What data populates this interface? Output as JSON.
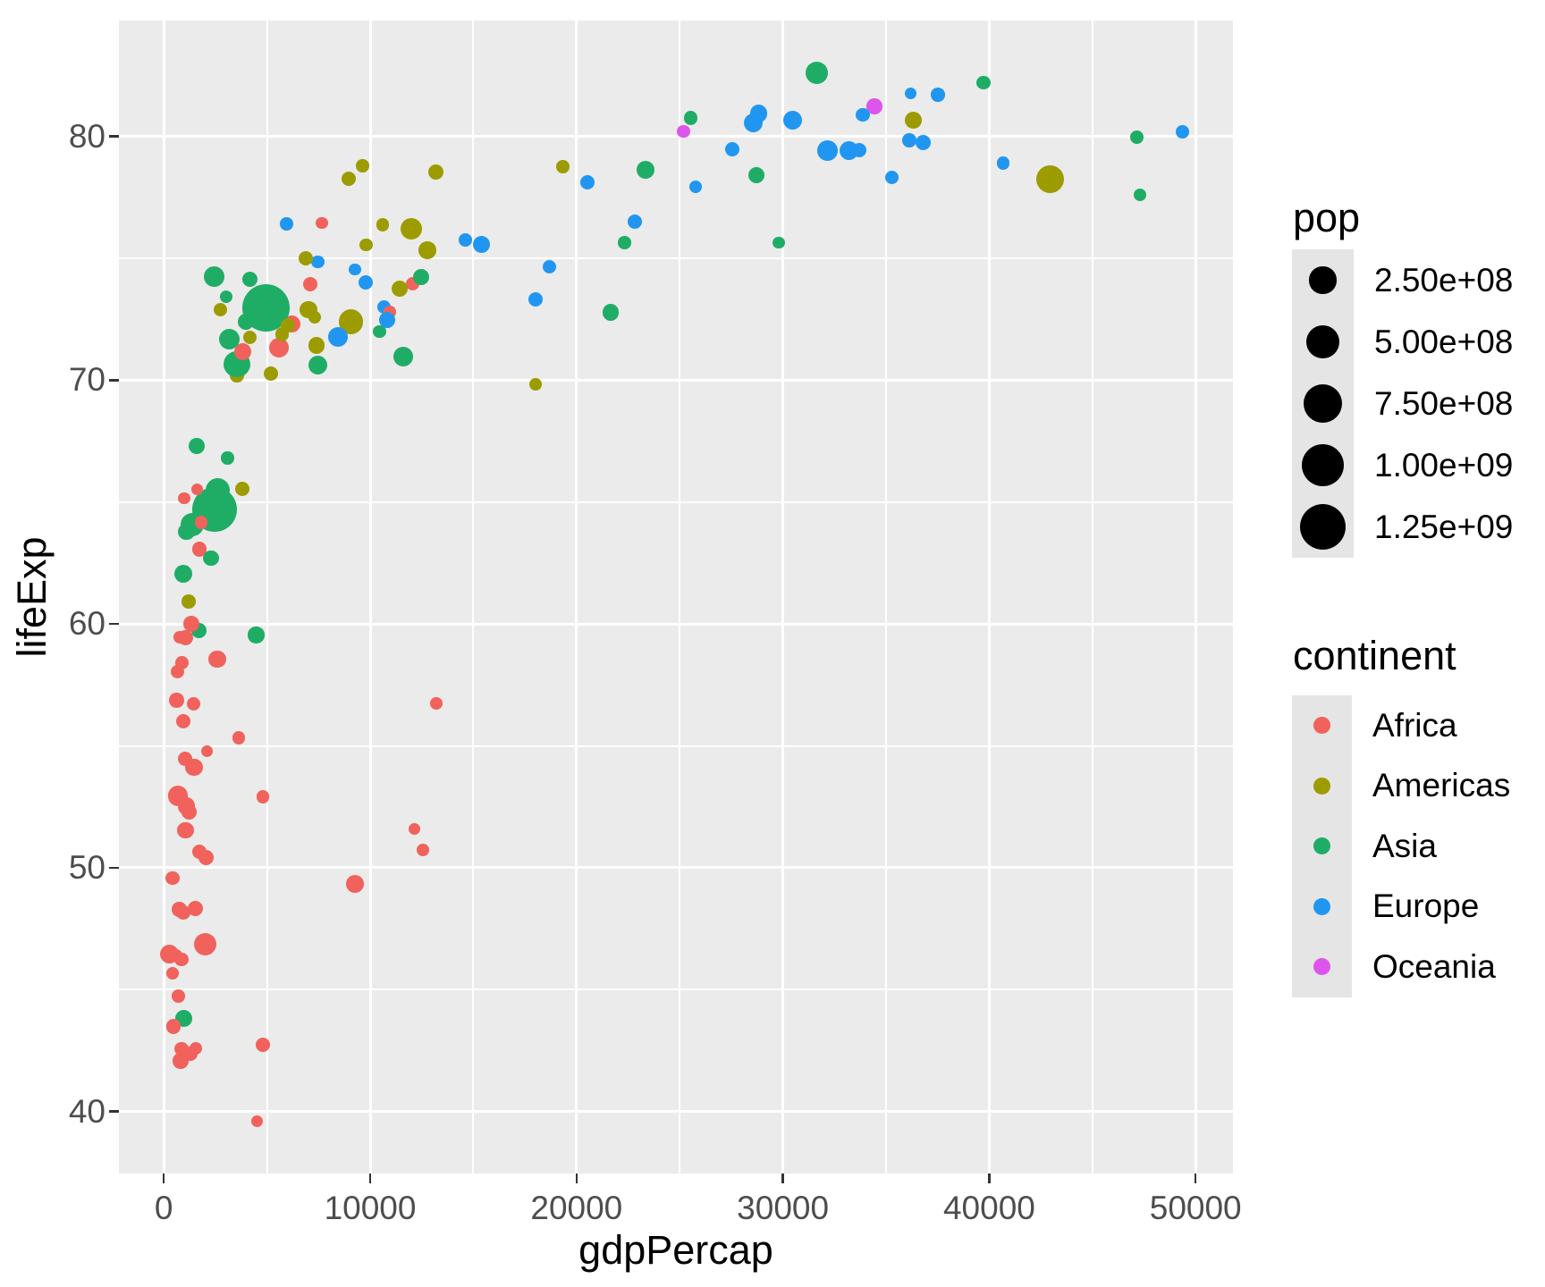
{
  "chart_data": {
    "type": "scatter",
    "title": "",
    "xlabel": "gdpPercap",
    "ylabel": "lifeExp",
    "x_axis": {
      "tick_values": [
        0,
        10000,
        20000,
        30000,
        40000,
        50000
      ],
      "tick_labels": [
        "0",
        "10000",
        "20000",
        "30000",
        "40000",
        "50000"
      ],
      "minor": [
        5000,
        15000,
        25000,
        35000,
        45000
      ],
      "lim": [
        -2176,
        51811
      ]
    },
    "y_axis": {
      "tick_values": [
        40,
        50,
        60,
        70,
        80
      ],
      "tick_labels": [
        "40",
        "50",
        "60",
        "70",
        "80"
      ],
      "minor": [
        45,
        55,
        65,
        75
      ],
      "lim": [
        37.46,
        84.75
      ]
    },
    "grid": "on",
    "legend_position": "right",
    "colors": {
      "panel_bg": "#EBEBEB",
      "grid": "#FFFFFF",
      "axis_text": "#4D4D4D",
      "tick_mark": "#333333",
      "legend_key_bg": "#E5E5E5",
      "legend_dot": "#000000"
    },
    "size_legend": {
      "title": "pop",
      "entries": [
        {
          "label": "2.50e+08",
          "value": 250000000
        },
        {
          "label": "5.00e+08",
          "value": 500000000
        },
        {
          "label": "7.50e+08",
          "value": 750000000
        },
        {
          "label": "1.00e+09",
          "value": 1000000000
        },
        {
          "label": "1.25e+09",
          "value": 1250000000
        }
      ]
    },
    "color_legend": {
      "title": "continent",
      "entries": [
        {
          "label": "Africa",
          "color": "#F0625B"
        },
        {
          "label": "Americas",
          "color": "#9C9C00"
        },
        {
          "label": "Asia",
          "color": "#1FAD66"
        },
        {
          "label": "Europe",
          "color": "#2196F0"
        },
        {
          "label": "Oceania",
          "color": "#DD55EC"
        }
      ]
    },
    "size_scale": {
      "domain": [
        199579,
        1318683096
      ],
      "radius_px": [
        6.5,
        26.5
      ]
    },
    "points_columns": [
      "gdpPercap",
      "lifeExp",
      "pop",
      "continent_index"
    ],
    "points": [
      [
        974.6,
        43.83,
        31889923,
        2
      ],
      [
        5937.0,
        76.42,
        3600523,
        3
      ],
      [
        6223.4,
        72.3,
        33333216,
        0
      ],
      [
        4797.2,
        42.73,
        12420476,
        0
      ],
      [
        12779.4,
        75.32,
        40301927,
        1
      ],
      [
        34435.4,
        81.24,
        20434176,
        4
      ],
      [
        36126.5,
        79.83,
        8199783,
        3
      ],
      [
        29796.0,
        75.64,
        708573,
        2
      ],
      [
        1391.3,
        64.06,
        150448339,
        2
      ],
      [
        33692.6,
        79.44,
        10392226,
        3
      ],
      [
        1441.3,
        56.73,
        8078314,
        0
      ],
      [
        3822.1,
        65.55,
        9119152,
        1
      ],
      [
        7446.3,
        74.85,
        4552198,
        3
      ],
      [
        12569.9,
        50.73,
        1639131,
        0
      ],
      [
        9065.8,
        72.39,
        190010647,
        1
      ],
      [
        10680.8,
        73.0,
        7322858,
        3
      ],
      [
        1217.0,
        52.3,
        14326203,
        0
      ],
      [
        430.1,
        49.58,
        8390505,
        0
      ],
      [
        1713.8,
        59.72,
        14131858,
        2
      ],
      [
        2042.1,
        50.43,
        17696293,
        0
      ],
      [
        36319.2,
        80.65,
        33390141,
        1
      ],
      [
        706.0,
        44.74,
        4369038,
        0
      ],
      [
        1704.1,
        50.65,
        10238807,
        0
      ],
      [
        13171.6,
        78.55,
        16284741,
        1
      ],
      [
        4959.1,
        72.96,
        1318683096,
        2
      ],
      [
        7006.6,
        72.89,
        44227550,
        1
      ],
      [
        986.1,
        65.15,
        710960,
        0
      ],
      [
        277.6,
        46.46,
        64606759,
        0
      ],
      [
        3632.6,
        55.32,
        3800610,
        0
      ],
      [
        9645.1,
        78.78,
        4133884,
        1
      ],
      [
        1544.8,
        48.33,
        18013409,
        0
      ],
      [
        14619.2,
        75.75,
        4493312,
        3
      ],
      [
        8948.1,
        78.27,
        11416987,
        1
      ],
      [
        22833.3,
        76.49,
        10228744,
        3
      ],
      [
        35278.4,
        78.33,
        5468120,
        3
      ],
      [
        2082.5,
        54.79,
        496374,
        0
      ],
      [
        6025.4,
        72.24,
        9319622,
        1
      ],
      [
        6873.3,
        75.0,
        13755680,
        1
      ],
      [
        5581.2,
        71.34,
        80264543,
        0
      ],
      [
        5728.4,
        71.88,
        6939688,
        1
      ],
      [
        12154.1,
        51.58,
        551201,
        0
      ],
      [
        641.4,
        58.04,
        4906585,
        0
      ],
      [
        690.8,
        52.95,
        76511887,
        0
      ],
      [
        33207.1,
        79.31,
        5238460,
        3
      ],
      [
        30470.0,
        80.66,
        61083916,
        3
      ],
      [
        13206.5,
        56.74,
        1454867,
        0
      ],
      [
        752.7,
        59.45,
        1688359,
        0
      ],
      [
        32170.4,
        79.41,
        82400996,
        3
      ],
      [
        1327.6,
        60.02,
        22873338,
        0
      ],
      [
        27538.4,
        79.48,
        10706290,
        3
      ],
      [
        5186.1,
        70.26,
        12572928,
        1
      ],
      [
        942.7,
        56.01,
        9947814,
        0
      ],
      [
        579.2,
        46.39,
        1472041,
        0
      ],
      [
        1201.6,
        60.92,
        8502814,
        1
      ],
      [
        3548.3,
        70.2,
        7483763,
        1
      ],
      [
        39725.0,
        82.21,
        6980412,
        2
      ],
      [
        18008.9,
        73.33,
        9956108,
        3
      ],
      [
        36180.8,
        81.76,
        301931,
        3
      ],
      [
        2452.2,
        64.7,
        1110396331,
        2
      ],
      [
        3540.7,
        70.65,
        223547000,
        2
      ],
      [
        11605.7,
        70.96,
        69453570,
        2
      ],
      [
        4471.1,
        59.55,
        27499638,
        2
      ],
      [
        40676.0,
        78.89,
        4109086,
        3
      ],
      [
        25523.3,
        80.75,
        6426679,
        2
      ],
      [
        28569.7,
        80.55,
        58147733,
        3
      ],
      [
        7320.9,
        72.57,
        2780132,
        1
      ],
      [
        31656.1,
        82.6,
        127467972,
        2
      ],
      [
        4519.5,
        72.54,
        6053193,
        2
      ],
      [
        1463.2,
        54.11,
        35610177,
        0
      ],
      [
        1593.1,
        67.3,
        23301725,
        2
      ],
      [
        23348.1,
        78.62,
        49044790,
        2
      ],
      [
        47307.0,
        77.59,
        2505559,
        2
      ],
      [
        10461.1,
        71.99,
        3921278,
        2
      ],
      [
        1569.3,
        42.59,
        2012649,
        0
      ],
      [
        414.5,
        45.68,
        3193942,
        0
      ],
      [
        12057.5,
        73.95,
        6036914,
        0
      ],
      [
        1044.8,
        59.44,
        19167654,
        0
      ],
      [
        759.3,
        48.3,
        13327079,
        0
      ],
      [
        12451.7,
        74.24,
        24821286,
        2
      ],
      [
        1042.6,
        54.47,
        12031795,
        0
      ],
      [
        1803.2,
        64.16,
        3270065,
        0
      ],
      [
        10957.0,
        72.8,
        1250882,
        0
      ],
      [
        11977.6,
        76.2,
        108700891,
        1
      ],
      [
        3095.8,
        66.8,
        2874127,
        2
      ],
      [
        9253.9,
        74.54,
        684736,
        3
      ],
      [
        3820.2,
        71.16,
        33757175,
        0
      ],
      [
        823.7,
        42.08,
        19951656,
        0
      ],
      [
        944.0,
        62.07,
        47761980,
        2
      ],
      [
        4811.1,
        52.91,
        2055080,
        0
      ],
      [
        1091.4,
        63.79,
        28901790,
        2
      ],
      [
        36797.9,
        79.76,
        16570613,
        3
      ],
      [
        25185.0,
        80.2,
        4115771,
        4
      ],
      [
        2749.3,
        72.9,
        5675356,
        1
      ],
      [
        619.7,
        56.87,
        12894865,
        0
      ],
      [
        2014.0,
        46.86,
        135031164,
        0
      ],
      [
        49357.2,
        80.2,
        4627926,
        3
      ],
      [
        22316.2,
        75.64,
        3204897,
        2
      ],
      [
        2605.9,
        65.48,
        169270617,
        2
      ],
      [
        9809.2,
        75.54,
        3242173,
        1
      ],
      [
        4172.8,
        71.75,
        6667147,
        1
      ],
      [
        7408.9,
        71.42,
        28674757,
        1
      ],
      [
        3190.5,
        71.69,
        91077287,
        2
      ],
      [
        15389.9,
        75.56,
        38518241,
        3
      ],
      [
        20509.6,
        78.1,
        10642836,
        3
      ],
      [
        19328.7,
        78.75,
        3942491,
        1
      ],
      [
        7670.1,
        76.44,
        798094,
        0
      ],
      [
        10808.5,
        72.48,
        22276056,
        3
      ],
      [
        863.1,
        46.24,
        8860588,
        0
      ],
      [
        1598.4,
        65.53,
        199579,
        0
      ],
      [
        21654.8,
        72.78,
        27601038,
        2
      ],
      [
        1712.5,
        63.06,
        12267493,
        0
      ],
      [
        9786.5,
        74.0,
        10150265,
        3
      ],
      [
        862.5,
        42.57,
        6144562,
        0
      ],
      [
        47143.2,
        79.97,
        4553009,
        2
      ],
      [
        18678.3,
        74.66,
        5447502,
        3
      ],
      [
        25768.3,
        77.93,
        2009245,
        3
      ],
      [
        926.1,
        48.16,
        9118773,
        0
      ],
      [
        9269.7,
        49.34,
        43997828,
        0
      ],
      [
        28821.1,
        80.94,
        40448191,
        3
      ],
      [
        3970.1,
        72.4,
        20378239,
        2
      ],
      [
        2602.4,
        58.56,
        42292929,
        0
      ],
      [
        4513.5,
        39.61,
        1133066,
        0
      ],
      [
        33859.7,
        80.88,
        9031088,
        3
      ],
      [
        37506.4,
        81.7,
        7554661,
        3
      ],
      [
        4184.5,
        74.14,
        19314747,
        2
      ],
      [
        28718.3,
        78.4,
        23174294,
        2
      ],
      [
        1107.5,
        52.52,
        38139640,
        0
      ],
      [
        7458.4,
        70.62,
        65068149,
        2
      ],
      [
        883.0,
        58.42,
        5701579,
        0
      ],
      [
        18008.5,
        69.82,
        1056608,
        1
      ],
      [
        7092.9,
        73.92,
        10276158,
        0
      ],
      [
        8458.3,
        71.78,
        71158647,
        3
      ],
      [
        1056.4,
        51.54,
        29170398,
        0
      ],
      [
        33203.3,
        79.43,
        60776238,
        3
      ],
      [
        42951.7,
        78.24,
        301139947,
        1
      ],
      [
        10611.5,
        76.38,
        3447496,
        1
      ],
      [
        11415.8,
        73.75,
        26084662,
        1
      ],
      [
        2441.6,
        74.25,
        85262356,
        2
      ],
      [
        3025.3,
        73.42,
        4018075,
        2
      ],
      [
        2280.8,
        62.7,
        22211743,
        2
      ],
      [
        1271.2,
        42.38,
        11746035,
        0
      ],
      [
        469.7,
        43.49,
        12311143,
        0
      ]
    ]
  }
}
